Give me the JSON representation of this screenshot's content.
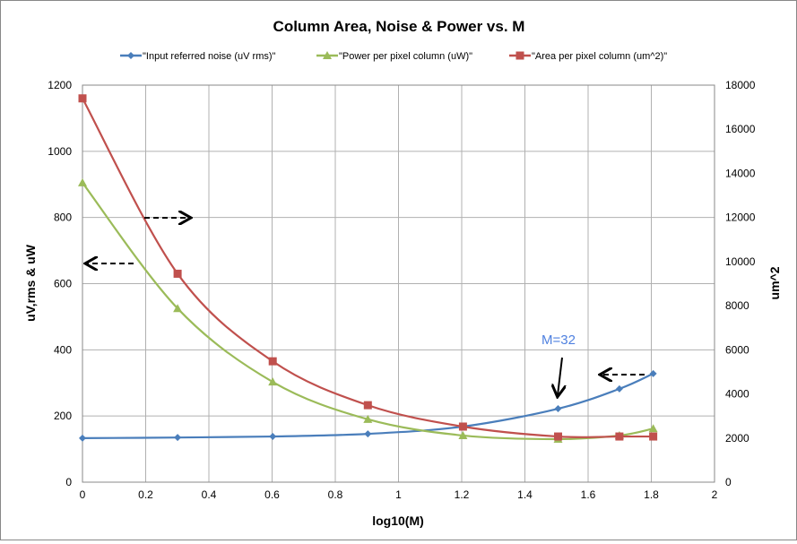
{
  "chart_data": {
    "type": "line",
    "title": "Column Area, Noise & Power vs. M",
    "xlabel": "log10(M)",
    "ylabel": "uV,rms & uW",
    "y2label": "um^2",
    "xlim": [
      0,
      2
    ],
    "ylim": [
      0,
      1200
    ],
    "y2lim": [
      0,
      18000
    ],
    "xticks": [
      "0",
      "0.2",
      "0.4",
      "0.6",
      "0.8",
      "1",
      "1.2",
      "1.4",
      "1.6",
      "1.8",
      "2"
    ],
    "yticks": [
      "0",
      "200",
      "400",
      "600",
      "800",
      "1000",
      "1200"
    ],
    "y2ticks": [
      "0",
      "2000",
      "4000",
      "6000",
      "8000",
      "10000",
      "12000",
      "14000",
      "16000",
      "18000"
    ],
    "grid": true,
    "legend_position": "top",
    "x": [
      0,
      0.301,
      0.602,
      0.903,
      1.204,
      1.505,
      1.699,
      1.806
    ],
    "series": [
      {
        "name": "\"Input referred noise (uV rms)\"",
        "axis": "left",
        "marker": "diamond",
        "color": "#4a7ebb",
        "values": [
          133,
          135,
          138,
          146,
          168,
          222,
          282,
          328
        ]
      },
      {
        "name": "\"Power per pixel column (uW)\"",
        "axis": "left",
        "marker": "triangle",
        "color": "#9bbb59",
        "values": [
          905,
          525,
          303,
          190,
          141,
          130,
          141,
          162
        ]
      },
      {
        "name": "\"Area per pixel column (um^2)\"",
        "axis": "right",
        "marker": "square",
        "color": "#c0504d",
        "values": [
          17400,
          9450,
          5480,
          3490,
          2520,
          2070,
          2070,
          2070
        ]
      }
    ],
    "annotations": [
      {
        "text": "M=32",
        "color": "#4f81e0"
      }
    ]
  }
}
